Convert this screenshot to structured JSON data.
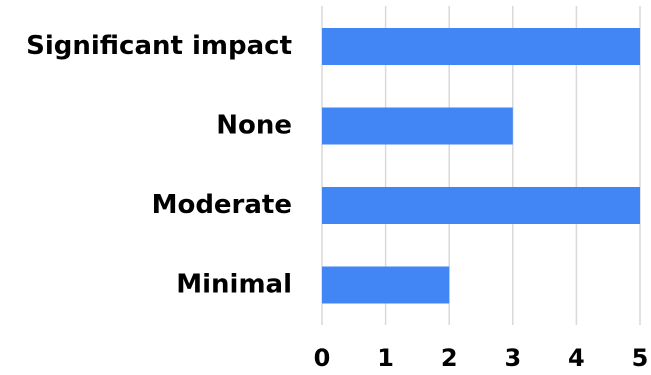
{
  "chart_data": {
    "type": "bar",
    "orientation": "horizontal",
    "categories": [
      "Significant impact",
      "None",
      "Moderate",
      "Minimal"
    ],
    "values": [
      5,
      3,
      5,
      2
    ],
    "xlim": [
      0,
      5
    ],
    "x_ticks": [
      "0",
      "1",
      "2",
      "3",
      "4",
      "5"
    ],
    "grid": "vertical",
    "bar_color": "#4285f4",
    "legend": "none"
  }
}
